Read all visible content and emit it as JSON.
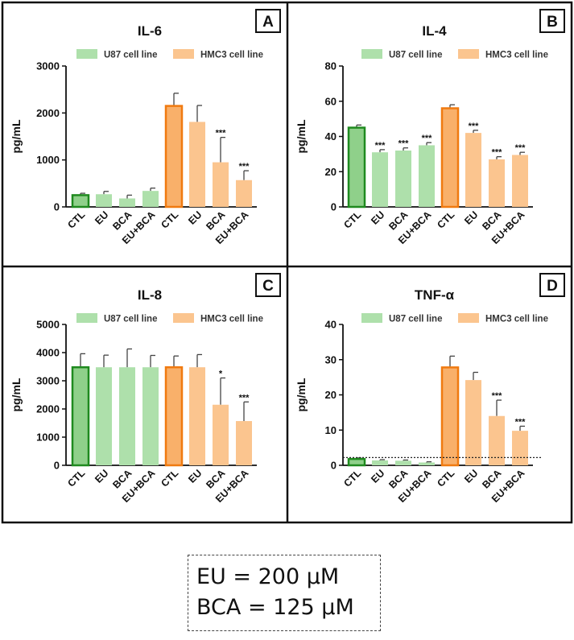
{
  "figure": {
    "colors": {
      "u87_fill": "#aee0ab",
      "u87_ctl_fill": "#8fd08a",
      "u87_ctl_edge": "#1f8a1f",
      "hmc3_fill": "#fbc58f",
      "hmc3_ctl_fill": "#f9b06a",
      "hmc3_ctl_edge": "#f07a10",
      "error": "#444444",
      "frame": "#111111"
    },
    "legend_entries": [
      "U87 cell line",
      "HMC3 cell line"
    ],
    "note": {
      "line1": "EU = 200 μM",
      "line2": "BCA = 125 μM"
    }
  },
  "chart_data": [
    {
      "panel_letter": "A",
      "type": "bar",
      "title": "IL-6",
      "ylabel": "pg/mL",
      "xlabel": "",
      "ylim": [
        0,
        3000
      ],
      "yticks": [
        "0",
        "1000",
        "2000",
        "3000"
      ],
      "ytick_values": [
        0,
        1000,
        2000,
        3000
      ],
      "categories": [
        "CTL",
        "EU",
        "BCA",
        "EU+BCA",
        "CTL",
        "EU",
        "BCA",
        "EU+BCA"
      ],
      "group": [
        "U87",
        "U87",
        "U87",
        "U87",
        "HMC3",
        "HMC3",
        "HMC3",
        "HMC3"
      ],
      "values": [
        250,
        270,
        180,
        340,
        2150,
        1810,
        950,
        570
      ],
      "errors": [
        40,
        60,
        70,
        60,
        270,
        350,
        530,
        200
      ],
      "annotations": [
        "",
        "",
        "",
        "",
        "",
        "",
        "***",
        "***"
      ],
      "legend": [
        "U87 cell line",
        "HMC3 cell line"
      ],
      "reference_line": null
    },
    {
      "panel_letter": "B",
      "type": "bar",
      "title": "IL-4",
      "ylabel": "pg/mL",
      "xlabel": "",
      "ylim": [
        0,
        80
      ],
      "yticks": [
        "0",
        "20",
        "40",
        "60",
        "80"
      ],
      "ytick_values": [
        0,
        20,
        40,
        60,
        80
      ],
      "categories": [
        "CTL",
        "EU",
        "BCA",
        "EU+BCA",
        "CTL",
        "EU",
        "BCA",
        "EU+BCA"
      ],
      "group": [
        "U87",
        "U87",
        "U87",
        "U87",
        "HMC3",
        "HMC3",
        "HMC3",
        "HMC3"
      ],
      "values": [
        45,
        31,
        32,
        35,
        56,
        42,
        27,
        29.5
      ],
      "errors": [
        1.5,
        1.5,
        1.5,
        1.5,
        2,
        1.5,
        1.5,
        1.5
      ],
      "annotations": [
        "",
        "***",
        "***",
        "***",
        "",
        "***",
        "***",
        "***"
      ],
      "legend": [
        "U87 cell line",
        "HMC3 cell line"
      ],
      "reference_line": null
    },
    {
      "panel_letter": "C",
      "type": "bar",
      "title": "IL-8",
      "ylabel": "pg/mL",
      "xlabel": "",
      "ylim": [
        0,
        5000
      ],
      "yticks": [
        "0",
        "1000",
        "2000",
        "3000",
        "4000",
        "5000"
      ],
      "ytick_values": [
        0,
        1000,
        2000,
        3000,
        4000,
        5000
      ],
      "categories": [
        "CTL",
        "EU",
        "BCA",
        "EU+BCA",
        "CTL",
        "EU",
        "BCA",
        "EU+BCA"
      ],
      "group": [
        "U87",
        "U87",
        "U87",
        "U87",
        "HMC3",
        "HMC3",
        "HMC3",
        "HMC3"
      ],
      "values": [
        3480,
        3480,
        3480,
        3480,
        3480,
        3480,
        2150,
        1570
      ],
      "errors": [
        480,
        430,
        650,
        420,
        400,
        450,
        950,
        680
      ],
      "annotations": [
        "",
        "",
        "",
        "",
        "",
        "",
        "*",
        "***"
      ],
      "legend": [
        "U87 cell line",
        "HMC3 cell line"
      ],
      "reference_line": null
    },
    {
      "panel_letter": "D",
      "type": "bar",
      "title": "TNF-α",
      "ylabel": "pg/mL",
      "xlabel": "",
      "ylim": [
        0,
        40
      ],
      "yticks": [
        "0",
        "10",
        "20",
        "30",
        "40"
      ],
      "ytick_values": [
        0,
        10,
        20,
        30,
        40
      ],
      "categories": [
        "CTL",
        "EU",
        "BCA",
        "EU+BCA",
        "CTL",
        "EU",
        "BCA",
        "EU+BCA"
      ],
      "group": [
        "U87",
        "U87",
        "U87",
        "U87",
        "HMC3",
        "HMC3",
        "HMC3",
        "HMC3"
      ],
      "values": [
        1.8,
        1.4,
        1.3,
        0.8,
        27.8,
        24.2,
        14,
        9.8
      ],
      "errors": [
        0.3,
        0.2,
        0.2,
        0.2,
        3.2,
        2.2,
        4.5,
        1.3
      ],
      "annotations": [
        "",
        "",
        "",
        "",
        "",
        "",
        "***",
        "***"
      ],
      "legend": [
        "U87 cell line",
        "HMC3 cell line"
      ],
      "reference_line": 2.2
    }
  ]
}
